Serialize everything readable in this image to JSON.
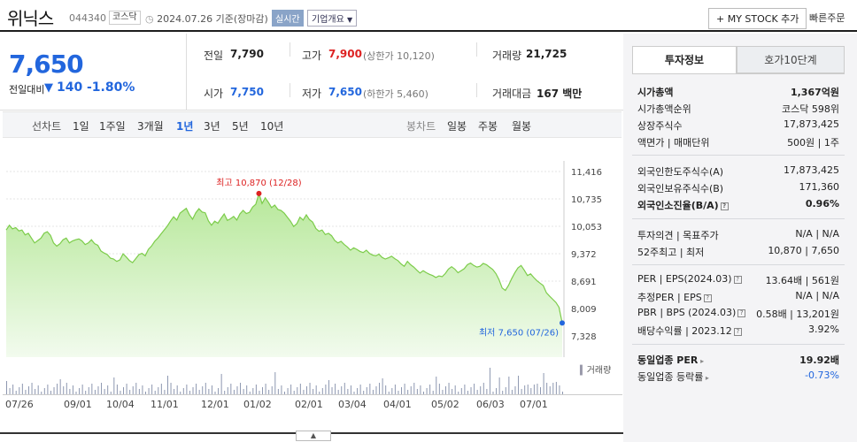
{
  "header": {
    "name": "위닉스",
    "code": "044340",
    "market": "코스닥",
    "date": "2024.07.26 기준(장마감)",
    "realtime": "실시간",
    "company_info": "기업개요",
    "mystock": "+ MY STOCK 추가",
    "quick_order": "빠른주문"
  },
  "price": {
    "current": "7,650",
    "change_label": "전일대비",
    "change_arrow": "▼",
    "change_amount": "140",
    "change_pct": "-1.80%"
  },
  "summary": {
    "prev_label": "전일",
    "prev_value": "7,790",
    "high_label": "고가",
    "high_value": "7,900",
    "upper_limit": "(상한가 10,120)",
    "volume_label": "거래량",
    "volume_value": "21,725",
    "open_label": "시가",
    "open_value": "7,750",
    "low_label": "저가",
    "low_value": "7,650",
    "lower_limit": "(하한가 5,460)",
    "amount_label": "거래대금",
    "amount_value": "167 백만"
  },
  "chart_controls": {
    "line_label": "선차트",
    "periods": [
      "1일",
      "1주일",
      "3개월",
      "1년",
      "3년",
      "5년",
      "10년"
    ],
    "active_period": "1년",
    "candle_label": "봉차트",
    "candles": [
      "일봉",
      "주봉",
      "월봉"
    ]
  },
  "chart_data": {
    "type": "area",
    "y_ticks": [
      "11,416",
      "10,735",
      "10,053",
      "9,372",
      "8,691",
      "8,009",
      "7,328"
    ],
    "ylim": [
      7328,
      11416
    ],
    "x_ticks": [
      "07/26",
      "09/01",
      "10/04",
      "11/01",
      "12/01",
      "01/02",
      "02/01",
      "03/04",
      "04/01",
      "05/02",
      "06/03",
      "07/01"
    ],
    "values": [
      9960,
      10080,
      9990,
      10020,
      9940,
      9960,
      9840,
      9880,
      9760,
      9640,
      9700,
      9760,
      9880,
      9920,
      9830,
      9640,
      9560,
      9620,
      9720,
      9760,
      9640,
      9690,
      9720,
      9740,
      9690,
      9600,
      9640,
      9720,
      9620,
      9580,
      9440,
      9390,
      9350,
      9260,
      9240,
      9180,
      9220,
      9370,
      9290,
      9200,
      9150,
      9250,
      9350,
      9380,
      9320,
      9480,
      9560,
      9680,
      9760,
      9860,
      9960,
      10060,
      10180,
      10290,
      10210,
      10380,
      10440,
      10500,
      10340,
      10230,
      10390,
      10490,
      10410,
      10390,
      10190,
      10080,
      10180,
      10130,
      10250,
      10360,
      10200,
      10240,
      10300,
      10210,
      10360,
      10450,
      10370,
      10400,
      10530,
      10600,
      10870,
      10620,
      10760,
      10650,
      10520,
      10580,
      10470,
      10450,
      10380,
      10280,
      10180,
      10050,
      10120,
      10280,
      10210,
      10340,
      10220,
      10160,
      10000,
      9930,
      9960,
      9850,
      9880,
      9820,
      9700,
      9640,
      9680,
      9600,
      9540,
      9460,
      9520,
      9480,
      9430,
      9400,
      9460,
      9380,
      9340,
      9320,
      9360,
      9280,
      9240,
      9270,
      9310,
      9250,
      9200,
      9120,
      9060,
      9180,
      9100,
      9040,
      8960,
      8890,
      8950,
      8900,
      8860,
      8830,
      8780,
      8820,
      8800,
      8880,
      8990,
      9050,
      8990,
      8900,
      8950,
      9000,
      9100,
      9140,
      9080,
      9040,
      9060,
      9130,
      9100,
      9040,
      8980,
      8880,
      8730,
      8520,
      8460,
      8580,
      8750,
      8900,
      9020,
      9080,
      8960,
      8830,
      8870,
      8780,
      8700,
      8640,
      8580,
      8400,
      8320,
      8240,
      8160,
      8040,
      7650
    ],
    "high_label": "최고 10,870 (12/28)",
    "low_label": "최저 7,650 (07/26)",
    "volume_label": "거래량"
  },
  "invest_tabs": [
    "투자정보",
    "호가10단계"
  ],
  "invest": {
    "market_cap_label": "시가총액",
    "market_cap_value": "1,367억원",
    "rank_label": "시가총액순위",
    "rank_value": "코스닥 598위",
    "shares_label": "상장주식수",
    "shares_value": "17,873,425",
    "par_label": "액면가 | 매매단위",
    "par_value": "500원 | 1주",
    "foreign_limit_label": "외국인한도주식수(A)",
    "foreign_limit_value": "17,873,425",
    "foreign_hold_label": "외국인보유주식수(B)",
    "foreign_hold_value": "171,360",
    "foreign_rate_label": "외국인소진율(B/A)",
    "foreign_rate_value": "0.96%",
    "opinion_label": "투자의견 | 목표주가",
    "opinion_value": "N/A | N/A",
    "week52_label": "52주최고 | 최저",
    "week52_value": "10,870 | 7,650",
    "per_label": "PER | EPS(2024.03)",
    "per_value": "13.64배 | 561원",
    "est_per_label": "추정PER | EPS",
    "est_per_value": "N/A | N/A",
    "pbr_label": "PBR | BPS (2024.03)",
    "pbr_value": "0.58배 | 13,201원",
    "div_label": "배당수익률 | 2023.12",
    "div_value": "3.92%",
    "industry_per_label": "동일업종 PER",
    "industry_per_value": "19.92배",
    "industry_rate_label": "동일업종 등락률",
    "industry_rate_value": "-0.73%"
  }
}
